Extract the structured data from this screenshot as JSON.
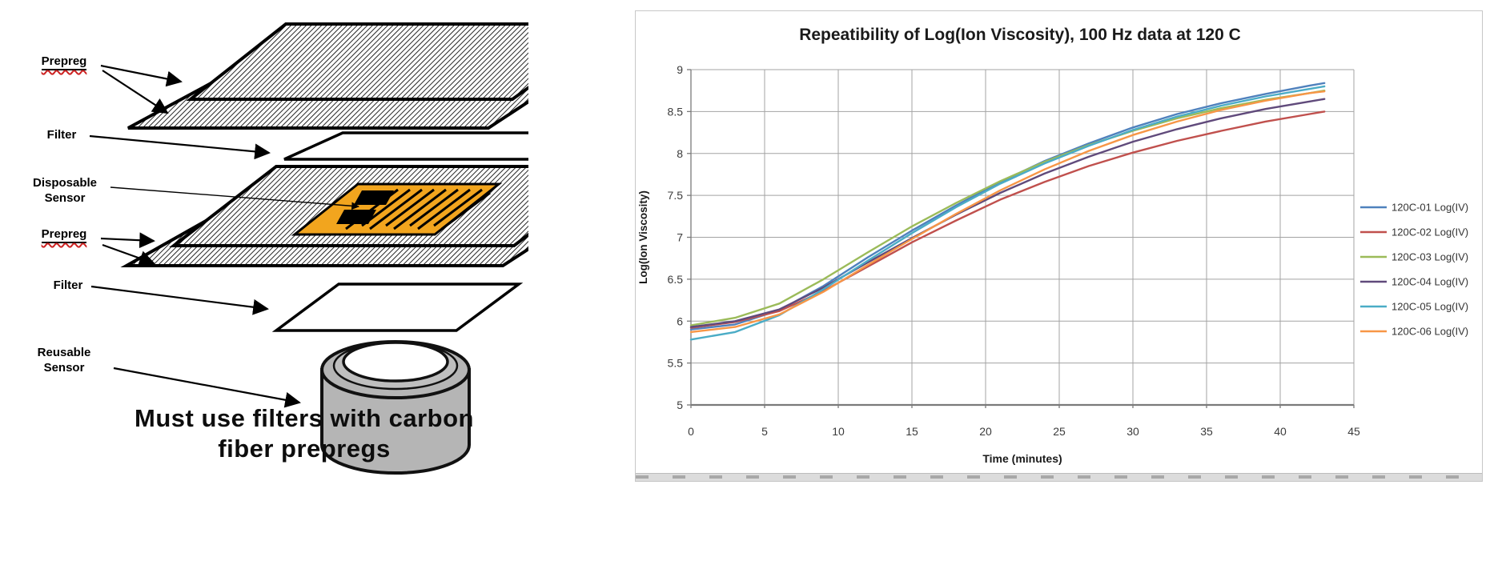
{
  "diagram": {
    "labels": [
      {
        "id": "prepreg-top",
        "text": "Prepreg"
      },
      {
        "id": "filter-top",
        "text": "Filter"
      },
      {
        "id": "disposable-sensor",
        "text": "Disposable\nSensor"
      },
      {
        "id": "prepreg-mid",
        "text": "Prepreg"
      },
      {
        "id": "filter-mid",
        "text": "Filter"
      },
      {
        "id": "reusable-sensor",
        "text": "Reusable\nSensor"
      }
    ],
    "caption": "Must use filters with carbon\nfiber prepregs",
    "colors": {
      "disposable_sensor": "#F2A51E",
      "reusable_sensor_body": "#B5B5B5",
      "sheet_outline": "#000000",
      "filter_fill": "#FFFFFF"
    }
  },
  "chart_data": {
    "type": "line",
    "title": "Repeatibility of Log(Ion Viscosity), 100 Hz data at 120 C",
    "xlabel": "Time (minutes)",
    "ylabel": "Log(Ion Viscosity)",
    "xlim": [
      0,
      45
    ],
    "ylim": [
      5,
      9
    ],
    "x_ticks": [
      0,
      5,
      10,
      15,
      20,
      25,
      30,
      35,
      40,
      45
    ],
    "y_ticks": [
      5,
      5.5,
      6,
      6.5,
      7,
      7.5,
      8,
      8.5,
      9
    ],
    "grid": true,
    "legend_position": "right",
    "x": [
      0,
      3,
      6,
      9,
      12,
      15,
      18,
      21,
      24,
      27,
      30,
      33,
      36,
      39,
      42,
      43
    ],
    "series": [
      {
        "name": "120C-01 Log(IV)",
        "color": "#4F81BD",
        "values": [
          5.9,
          5.96,
          6.13,
          6.42,
          6.76,
          7.08,
          7.38,
          7.66,
          7.91,
          8.12,
          8.31,
          8.47,
          8.6,
          8.71,
          8.81,
          8.84
        ]
      },
      {
        "name": "120C-02 Log(IV)",
        "color": "#C0504D",
        "values": [
          5.92,
          5.99,
          6.12,
          6.36,
          6.65,
          6.94,
          7.2,
          7.45,
          7.66,
          7.85,
          8.01,
          8.15,
          8.27,
          8.38,
          8.47,
          8.5
        ]
      },
      {
        "name": "120C-03 Log(IV)",
        "color": "#9BBB59",
        "values": [
          5.95,
          6.04,
          6.21,
          6.5,
          6.82,
          7.13,
          7.41,
          7.67,
          7.9,
          8.1,
          8.27,
          8.42,
          8.54,
          8.64,
          8.72,
          8.75
        ]
      },
      {
        "name": "120C-04 Log(IV)",
        "color": "#604A7B",
        "values": [
          5.93,
          6.0,
          6.14,
          6.4,
          6.7,
          6.99,
          7.27,
          7.53,
          7.76,
          7.96,
          8.14,
          8.29,
          8.42,
          8.53,
          8.62,
          8.65
        ]
      },
      {
        "name": "120C-05 Log(IV)",
        "color": "#4BACC6",
        "values": [
          5.78,
          5.87,
          6.07,
          6.38,
          6.72,
          7.05,
          7.36,
          7.64,
          7.88,
          8.09,
          8.28,
          8.44,
          8.57,
          8.68,
          8.77,
          8.8
        ]
      },
      {
        "name": "120C-06 Log(IV)",
        "color": "#F79646",
        "values": [
          5.87,
          5.93,
          6.08,
          6.35,
          6.67,
          6.98,
          7.28,
          7.56,
          7.81,
          8.03,
          8.22,
          8.38,
          8.52,
          8.63,
          8.72,
          8.74
        ]
      }
    ]
  }
}
